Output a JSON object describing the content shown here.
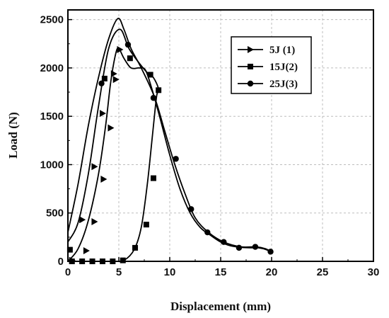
{
  "chart_data": {
    "type": "line",
    "title": "",
    "xlabel": "Displacement (mm)",
    "ylabel": "Load (N)",
    "xlim": [
      0,
      30
    ],
    "ylim": [
      0,
      2600
    ],
    "xticks": [
      0,
      5,
      10,
      15,
      20,
      25,
      30
    ],
    "yticks": [
      0,
      500,
      1000,
      1500,
      2000,
      2500
    ],
    "grid": true,
    "legend_position": "top-right",
    "series": [
      {
        "name": "5J (1)",
        "marker": "triangle-right",
        "color": "#000000",
        "curve": [
          [
            0,
            0
          ],
          [
            1,
            130
          ],
          [
            2,
            420
          ],
          [
            3,
            900
          ],
          [
            3.7,
            1400
          ],
          [
            4.2,
            1850
          ],
          [
            4.7,
            2150
          ],
          [
            5.0,
            2200
          ],
          [
            5.5,
            2100
          ],
          [
            6.2,
            2000
          ],
          [
            7.0,
            2000
          ],
          [
            7.6,
            1980
          ],
          [
            8.2,
            1800
          ],
          [
            9.0,
            1500
          ],
          [
            10.0,
            1100
          ],
          [
            11.0,
            750
          ],
          [
            12.0,
            500
          ],
          [
            13.0,
            350
          ],
          [
            14.0,
            270
          ],
          [
            15.0,
            200
          ],
          [
            16.0,
            160
          ],
          [
            17.0,
            145
          ],
          [
            18.0,
            140
          ],
          [
            18.7,
            140
          ],
          [
            19.5,
            120
          ],
          [
            20.0,
            90
          ]
        ],
        "markers": [
          [
            1.4,
            430
          ],
          [
            2.6,
            980
          ],
          [
            3.4,
            1530
          ],
          [
            4.5,
            1940
          ],
          [
            5.1,
            2190
          ],
          [
            4.7,
            1880
          ],
          [
            4.2,
            1380
          ],
          [
            3.5,
            850
          ],
          [
            2.6,
            410
          ],
          [
            1.8,
            110
          ],
          [
            0.4,
            10
          ]
        ]
      },
      {
        "name": "15J(2)",
        "marker": "square",
        "color": "#000000",
        "curve": [
          [
            0,
            0
          ],
          [
            4.5,
            0
          ],
          [
            5.5,
            10
          ],
          [
            6.5,
            120
          ],
          [
            7.2,
            350
          ],
          [
            7.8,
            800
          ],
          [
            8.3,
            1300
          ],
          [
            8.7,
            1700
          ],
          [
            8.9,
            1780
          ],
          [
            8.4,
            1900
          ],
          [
            7.8,
            1950
          ],
          [
            7.0,
            2050
          ],
          [
            6.0,
            2200
          ],
          [
            5.1,
            2400
          ],
          [
            4.0,
            2200
          ],
          [
            3.0,
            1600
          ],
          [
            2.0,
            900
          ],
          [
            1.0,
            400
          ],
          [
            0,
            200
          ]
        ],
        "markers": [
          [
            0.4,
            0
          ],
          [
            1.4,
            0
          ],
          [
            2.4,
            0
          ],
          [
            3.4,
            0
          ],
          [
            4.4,
            0
          ],
          [
            5.4,
            10
          ],
          [
            6.6,
            140
          ],
          [
            7.7,
            380
          ],
          [
            8.4,
            860
          ],
          [
            8.9,
            1770
          ],
          [
            8.1,
            1930
          ],
          [
            6.1,
            2100
          ],
          [
            3.6,
            1890
          ],
          [
            0.2,
            120
          ]
        ]
      },
      {
        "name": "25J(3)",
        "marker": "circle",
        "color": "#000000",
        "curve": [
          [
            0,
            300
          ],
          [
            1,
            800
          ],
          [
            2,
            1400
          ],
          [
            3,
            1900
          ],
          [
            4,
            2300
          ],
          [
            4.9,
            2510
          ],
          [
            5.5,
            2400
          ],
          [
            6.2,
            2200
          ],
          [
            7.2,
            2000
          ],
          [
            8.5,
            1700
          ],
          [
            9.5,
            1350
          ],
          [
            10.5,
            1000
          ],
          [
            11.5,
            700
          ],
          [
            12.5,
            450
          ],
          [
            13.8,
            300
          ],
          [
            15.3,
            200
          ],
          [
            17.0,
            150
          ],
          [
            18.5,
            150
          ],
          [
            19.4,
            130
          ],
          [
            20.0,
            95
          ]
        ],
        "markers": [
          [
            3.3,
            1840
          ],
          [
            5.9,
            2240
          ],
          [
            8.4,
            1690
          ],
          [
            10.6,
            1060
          ],
          [
            12.1,
            540
          ],
          [
            13.7,
            300
          ],
          [
            15.3,
            200
          ],
          [
            16.8,
            140
          ],
          [
            18.4,
            150
          ],
          [
            19.9,
            100
          ]
        ]
      }
    ]
  }
}
